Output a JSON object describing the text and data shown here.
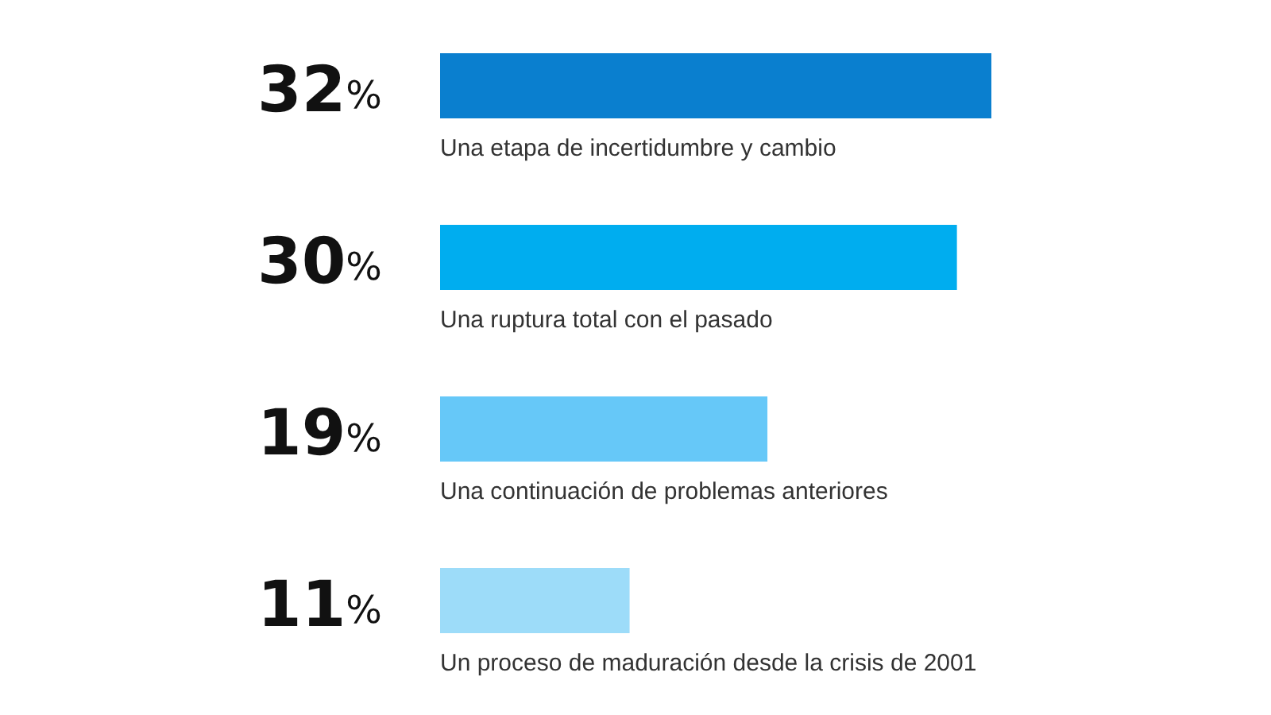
{
  "chart_data": {
    "type": "bar",
    "orientation": "horizontal",
    "categories": [
      "Una etapa de incertidumbre y cambio",
      "Una ruptura total con el pasado",
      "Una continuación de problemas anteriores",
      "Un proceso de maduración desde la crisis de 2001"
    ],
    "values": [
      32,
      30,
      19,
      11
    ],
    "colors": [
      "#0a7fcf",
      "#00adef",
      "#66c8f8",
      "#9ddcf9"
    ],
    "value_labels": [
      "32%",
      "30%",
      "19%",
      "11%"
    ],
    "tick_labels": false
  }
}
